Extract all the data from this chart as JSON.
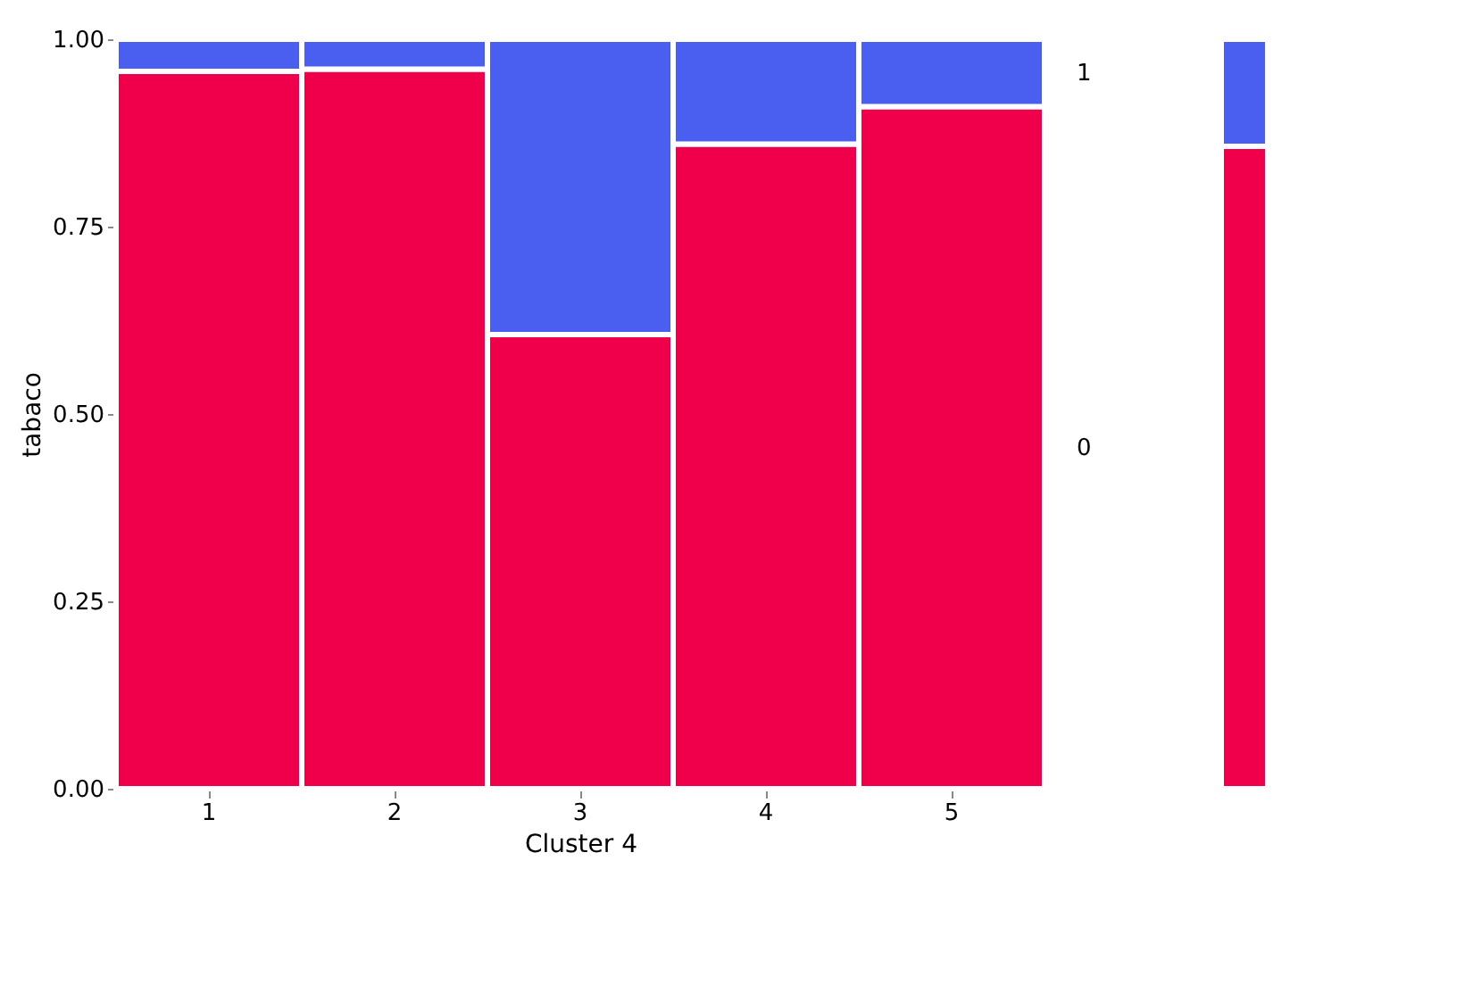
{
  "chart_data": [
    {
      "type": "bar",
      "stacked": true,
      "categories": [
        "1",
        "2",
        "3",
        "4",
        "5"
      ],
      "xlabel": "Cluster 4",
      "ylabel": "tabaco",
      "ylim": [
        0,
        1
      ],
      "yticks": [
        "0.00",
        {
          "value": 0.25,
          "label": "0.25"
        },
        {
          "value": 0.5,
          "label": "0.50"
        },
        {
          "value": 0.75,
          "label": "0.75"
        },
        {
          "value": 1,
          "label": "1.00"
        }
      ],
      "legend": "right",
      "series": [
        {
          "name": "0",
          "color": "#f0004a",
          "values": [
            0.957,
            0.96,
            0.606,
            0.86,
            0.91
          ]
        },
        {
          "name": "1",
          "color": "#4a5ef0",
          "values": [
            0.043,
            0.04,
            0.394,
            0.14,
            0.09
          ]
        }
      ]
    },
    {
      "type": "bar",
      "stacked": true,
      "categories": [
        null
      ],
      "ylim": [
        0,
        1
      ],
      "tick_labels": false,
      "series": [
        {
          "color": "#f0004a",
          "values": [
            0.857
          ]
        },
        {
          "color": "#4a5ef0",
          "values": [
            0.143
          ]
        }
      ]
    }
  ]
}
